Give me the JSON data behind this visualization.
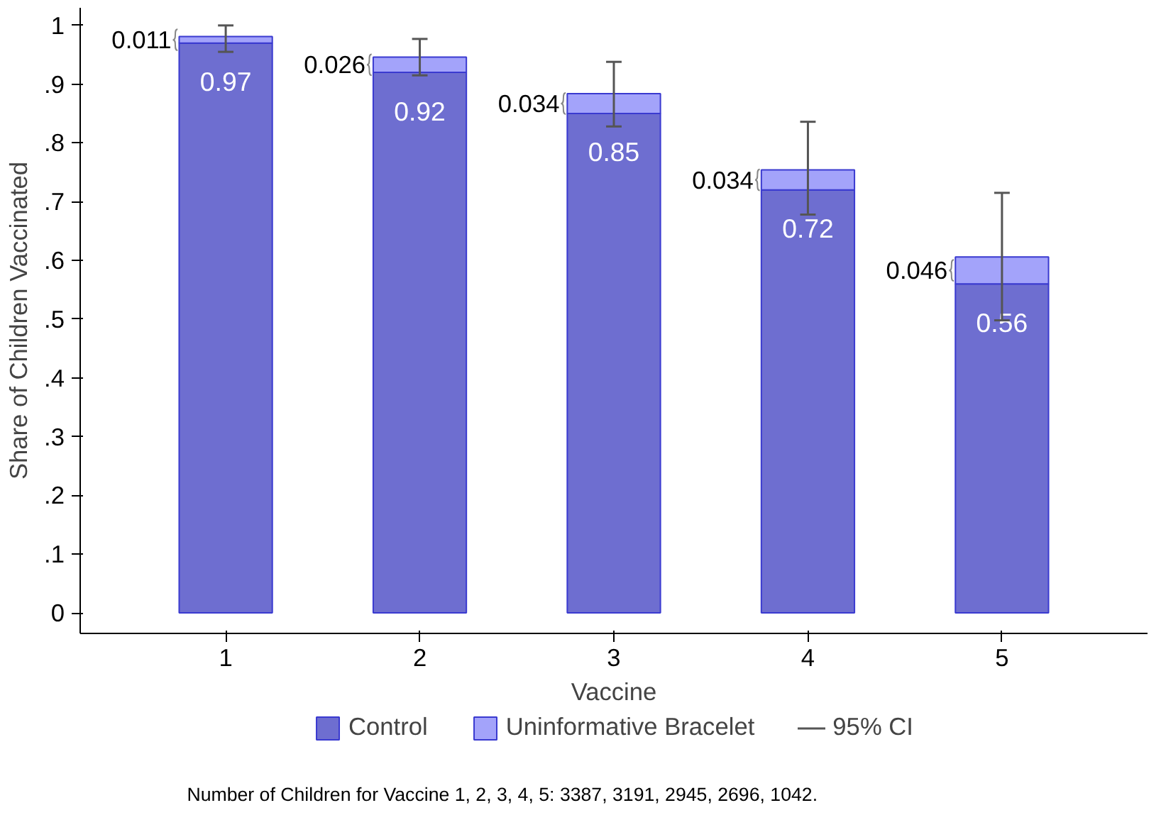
{
  "chart_data": {
    "type": "bar",
    "stacked": true,
    "xlabel": "Vaccine",
    "ylabel": "Share of Children Vaccinated",
    "categories": [
      "1",
      "2",
      "3",
      "4",
      "5"
    ],
    "series": [
      {
        "name": "Control",
        "color": "#6e6ed0",
        "values": [
          0.97,
          0.92,
          0.85,
          0.72,
          0.56
        ],
        "value_labels": [
          "0.97",
          "0.92",
          "0.85",
          "0.72",
          "0.56"
        ]
      },
      {
        "name": "Uninformative Bracelet",
        "color": "#a3a3fa",
        "values": [
          0.011,
          0.026,
          0.034,
          0.034,
          0.046
        ],
        "value_labels": [
          "0.011",
          "0.026",
          "0.034",
          "0.034",
          "0.046"
        ],
        "errors": [
          [
            0.955,
            1.0
          ],
          [
            0.915,
            0.977
          ],
          [
            0.828,
            0.938
          ],
          [
            0.678,
            0.836
          ],
          [
            0.498,
            0.715
          ]
        ]
      }
    ],
    "ylim": [
      -0.035,
      1.03
    ],
    "yticks": [
      {
        "value": 0,
        "label": "0"
      },
      {
        "value": 0.1,
        "label": ".1"
      },
      {
        "value": 0.2,
        "label": ".2"
      },
      {
        "value": 0.3,
        "label": ".3"
      },
      {
        "value": 0.4,
        "label": ".4"
      },
      {
        "value": 0.5,
        "label": ".5"
      },
      {
        "value": 0.6,
        "label": ".6"
      },
      {
        "value": 0.7,
        "label": ".7"
      },
      {
        "value": 0.8,
        "label": ".8"
      },
      {
        "value": 0.9,
        "label": ".9"
      },
      {
        "value": 1,
        "label": "1"
      }
    ],
    "grid": false,
    "legend": "bottom",
    "annotations": [
      "95% CI",
      "Number of Children for Vaccine 1, 2, 3, 4, 5: 3387, 3191, 2945, 2696, 1042."
    ]
  }
}
